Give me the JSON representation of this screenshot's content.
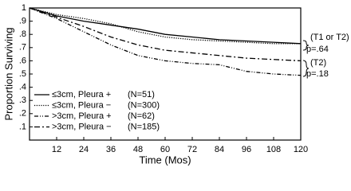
{
  "chart_data": {
    "type": "line",
    "y_label": "Proportion Surviving",
    "x_label": "Time (Mos)",
    "x": [
      0,
      12,
      24,
      36,
      48,
      60,
      72,
      84,
      96,
      108,
      120
    ],
    "series": [
      {
        "name": "≤3cm, Pleura +",
        "count_label": "(N=51)",
        "color": "#000000",
        "dash": "solid",
        "values": [
          1,
          0.94,
          0.9,
          0.87,
          0.84,
          0.8,
          0.78,
          0.76,
          0.75,
          0.74,
          0.73
        ]
      },
      {
        "name": "≤3cm, Pleura −",
        "count_label": "(N=300)",
        "color": "#000000",
        "dash": "dotted",
        "values": [
          1,
          0.95,
          0.92,
          0.88,
          0.82,
          0.78,
          0.76,
          0.75,
          0.74,
          0.73,
          0.73
        ]
      },
      {
        "name": ">3cm, Pleura +",
        "count_label": "(N=62)",
        "color": "#000000",
        "dash": "dash-dot-dot",
        "values": [
          1,
          0.92,
          0.82,
          0.72,
          0.64,
          0.6,
          0.58,
          0.57,
          0.52,
          0.5,
          0.49
        ]
      },
      {
        "name": ">3cm, Pleura −",
        "count_label": "(N=185)",
        "color": "#000000",
        "dash": "dash-dot",
        "values": [
          1,
          0.93,
          0.86,
          0.78,
          0.72,
          0.68,
          0.66,
          0.64,
          0.62,
          0.61,
          0.6
        ]
      }
    ],
    "xlim": [
      0,
      120
    ],
    "xticks": [
      12,
      24,
      36,
      48,
      60,
      72,
      84,
      96,
      108,
      120
    ],
    "ylim": [
      0,
      1
    ],
    "yticks": [
      {
        "value": 0.1,
        "label": ".1"
      },
      {
        "value": 0.2,
        "label": ".2"
      },
      {
        "value": 0.3,
        "label": ".3"
      },
      {
        "value": 0.4,
        "label": ".4"
      },
      {
        "value": 0.5,
        "label": ".5"
      },
      {
        "value": 0.6,
        "label": ".6"
      },
      {
        "value": 0.7,
        "label": ".7"
      },
      {
        "value": 0.8,
        "label": ".8"
      },
      {
        "value": 0.9,
        "label": ".9"
      },
      1
    ],
    "annotations": [
      "(T1 or T2)",
      "p=.64",
      "(T2)",
      "p=.18"
    ]
  }
}
